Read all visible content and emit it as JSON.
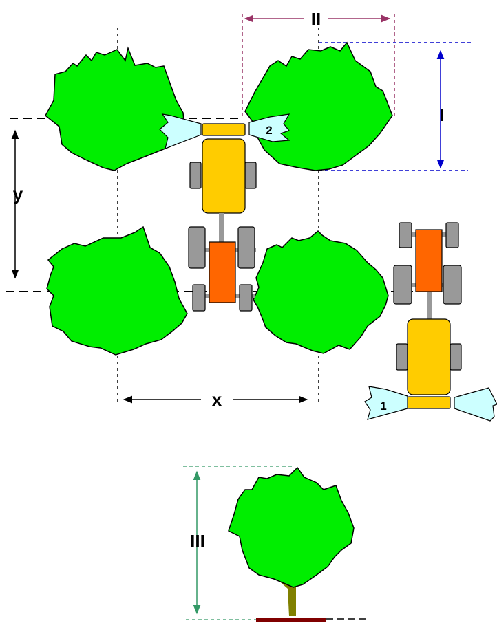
{
  "labels": {
    "row_spacing": "y",
    "tree_spacing": "x",
    "canopy_depth": "I",
    "canopy_width": "II",
    "tree_height": "III",
    "sprayer_one": "1",
    "sprayer_two": "2"
  },
  "colors": {
    "canopy": "#00ee00",
    "tractor_body": "#ffcc00",
    "trailer_body": "#ff6600",
    "wheel": "#999999",
    "spray": "#ccffff",
    "trunk": "#808000",
    "ground": "#800000",
    "dimension_black": "#000000",
    "dimension_blue": "#0000cc",
    "dimension_purple": "#993366",
    "dimension_green": "#339966"
  },
  "icons": [
    "tree-canopy-icon",
    "tractor-icon",
    "sprayer-fan-icon",
    "tree-side-view-icon"
  ]
}
